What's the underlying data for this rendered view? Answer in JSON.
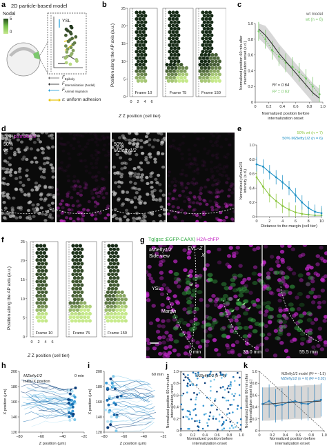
{
  "panel_letters": [
    "a",
    "b",
    "c",
    "d",
    "e",
    "f",
    "g",
    "h",
    "i",
    "j",
    "k"
  ],
  "panel_a": {
    "title": "2D particle-based model",
    "colorbar_title": "Nodal",
    "colorbar_max": "5",
    "colorbar_min": "0",
    "ysl": "YSL",
    "legend": [
      {
        "symbol": "F",
        "sub": "Epiboly"
      },
      {
        "symbol": "F",
        "sub": "Internalization (Nodal)"
      },
      {
        "symbol": "F",
        "sub": "Animal migration"
      }
    ],
    "adhesion": "uniform adhesion",
    "adhesion_symbol": "ε"
  },
  "panel_b": {
    "ylabel": "Position along the AP axis (a.u.)",
    "xlabel": "Z position (cell tier)",
    "yticks": [
      "25",
      "20",
      "15",
      "10",
      "5",
      "0"
    ],
    "xticks": [
      "0",
      "2",
      "4",
      "6"
    ],
    "frames": [
      "Frame 10",
      "Frame 75",
      "Frame 150"
    ]
  },
  "panel_c": {
    "ylabel": "Normalized position 60 min after internalization onset (s.d.)",
    "xlabel": "Normalized position before internalization onset",
    "legend": [
      "wt model",
      "wt (n = 6)"
    ],
    "r2": [
      "R² = 0.64",
      "R² = 0.63"
    ],
    "yticks": [
      "1.0",
      "0.8",
      "0.6",
      "0.4",
      "0.2",
      "0"
    ],
    "xticks": [
      "0",
      "0.2",
      "0.4",
      "0.6",
      "0.8",
      "1.0"
    ],
    "colors": {
      "model": "#333333",
      "wt": "#7cc86d",
      "band": "#bdbdbd"
    },
    "chart_data": {
      "type": "line",
      "x": [
        0.05,
        0.15,
        0.25,
        0.35,
        0.45,
        0.55,
        0.65,
        0.75,
        0.85,
        0.95
      ],
      "series": [
        {
          "name": "wt model",
          "values": [
            0.93,
            0.85,
            0.74,
            0.62,
            0.52,
            0.42,
            0.32,
            0.22,
            0.12,
            0.05
          ]
        },
        {
          "name": "wt (n = 6)",
          "values": [
            0.9,
            0.8,
            0.66,
            0.58,
            0.5,
            0.45,
            0.38,
            0.3,
            0.2,
            0.1
          ]
        }
      ],
      "xlim": [
        0,
        1
      ],
      "ylim": [
        0,
        1
      ]
    }
  },
  "panel_d": {
    "labels": [
      "DAPI",
      "pSmad2/3"
    ],
    "left_condition": [
      "50%",
      "wt"
    ],
    "right_condition": [
      "50%",
      "MZlefty1/2"
    ]
  },
  "panel_e": {
    "ylabel": "Normalized pSmad2/3 intensity (s.d.)",
    "xlabel": "Distance to the margin (cell tier)",
    "legend": [
      "50% wt (n = 7)",
      "50% MZlefty1/2 (n = 6)"
    ],
    "yticks": [
      "1.0",
      "0.8",
      "0.6",
      "0.4",
      "0.2",
      "0"
    ],
    "xticks": [
      "0",
      "2",
      "4",
      "6",
      "8",
      "10"
    ],
    "colors": {
      "wt": "#8cc63f",
      "mz": "#1a8fc4"
    },
    "chart_data": {
      "type": "line",
      "x": [
        0,
        1,
        2,
        3,
        4,
        5,
        6,
        7,
        8,
        9,
        10
      ],
      "series": [
        {
          "name": "50% wt (n = 7)",
          "values": [
            0.55,
            0.42,
            0.3,
            0.22,
            0.15,
            0.1,
            0.06,
            0.04,
            0.03,
            0.02,
            0.02
          ]
        },
        {
          "name": "50% MZlefty1/2 (n = 6)",
          "values": [
            0.73,
            0.7,
            0.62,
            0.55,
            0.48,
            0.4,
            0.3,
            0.2,
            0.12,
            0.07,
            0.05
          ]
        }
      ],
      "xlim": [
        0,
        10
      ],
      "ylim": [
        0,
        1
      ]
    }
  },
  "panel_f": {
    "ylabel": "Position along the AP axis (a.u.)",
    "xlabel": "Z position (cell tier)",
    "yticks": [
      "25",
      "20",
      "15",
      "10",
      "5",
      "0"
    ],
    "xticks": [
      "0",
      "2",
      "4",
      "6"
    ],
    "frames": [
      "Frame 10",
      "Frame 75",
      "Frame 150"
    ]
  },
  "panel_g": {
    "title_green": "Tg(gsc::EGFP-CAAX)",
    "title_magenta": "H2A-chFP",
    "sub1": "MZlefty1/2",
    "sub2": "Side view",
    "evl": "EVL",
    "evl_arrow": "Z",
    "x": "X",
    "ysl": "YSL",
    "margin": "Margin",
    "times": [
      "0 min",
      "33.0 min",
      "55.5 min"
    ]
  },
  "panel_h": {
    "ylabel": "X position (μm)",
    "xlabel": "Z position (μm)",
    "sub": "MZlefty1/2",
    "time": "0 min",
    "initial": "Initial X position",
    "yticks": [
      "200",
      "180",
      "160",
      "140",
      "120"
    ],
    "xticks": [
      "−80",
      "−60",
      "−40",
      "−20"
    ]
  },
  "panel_i": {
    "ylabel": "X position (μm)",
    "xlabel": "Z position (μm)",
    "time": "60 min",
    "yticks": [
      "200",
      "180",
      "160",
      "140",
      "120"
    ],
    "xticks": [
      "−80",
      "−60",
      "−40",
      "−20"
    ]
  },
  "panel_j": {
    "ylabel": "Normalized position 60 min after internalization onset",
    "xlabel": "Normalized position before internalization onset",
    "title": "MZlefty1/2 (n = 6)",
    "yticks": [
      "1.0",
      "0.8",
      "0.6",
      "0.4",
      "0.2",
      "0"
    ],
    "xticks": [
      "0",
      "0.2",
      "0.4",
      "0.6",
      "0.8",
      "1.0"
    ]
  },
  "panel_k": {
    "ylabel": "Normalized position 60 min after internalization onset (s.d.)",
    "xlabel": "Normalized position before internalization onset",
    "legend": [
      "MZlefty1/2 model (R² = −1.5)",
      "MZlefty1/2 (n = 6) (R² = 0.03)"
    ],
    "yticks": [
      "1.0",
      "0.8",
      "0.6",
      "0.4",
      "0.2",
      "0"
    ],
    "xticks": [
      "0",
      "0.2",
      "0.4",
      "0.6",
      "0.8",
      "1.0"
    ],
    "colors": {
      "model": "#333333",
      "data": "#2b7fb8"
    },
    "chart_data": {
      "type": "line",
      "x": [
        0.05,
        0.15,
        0.25,
        0.35,
        0.45,
        0.55,
        0.65,
        0.75,
        0.85,
        0.95
      ],
      "series": [
        {
          "name": "MZlefty1/2 model",
          "values": [
            0.45,
            0.45,
            0.46,
            0.47,
            0.47,
            0.48,
            0.48,
            0.49,
            0.49,
            0.5
          ]
        },
        {
          "name": "MZlefty1/2 (n = 6)",
          "values": [
            0.45,
            0.5,
            0.42,
            0.44,
            0.48,
            0.5,
            0.46,
            0.45,
            0.5,
            0.52
          ]
        }
      ],
      "xlim": [
        0,
        1
      ],
      "ylim": [
        0,
        1
      ]
    }
  }
}
